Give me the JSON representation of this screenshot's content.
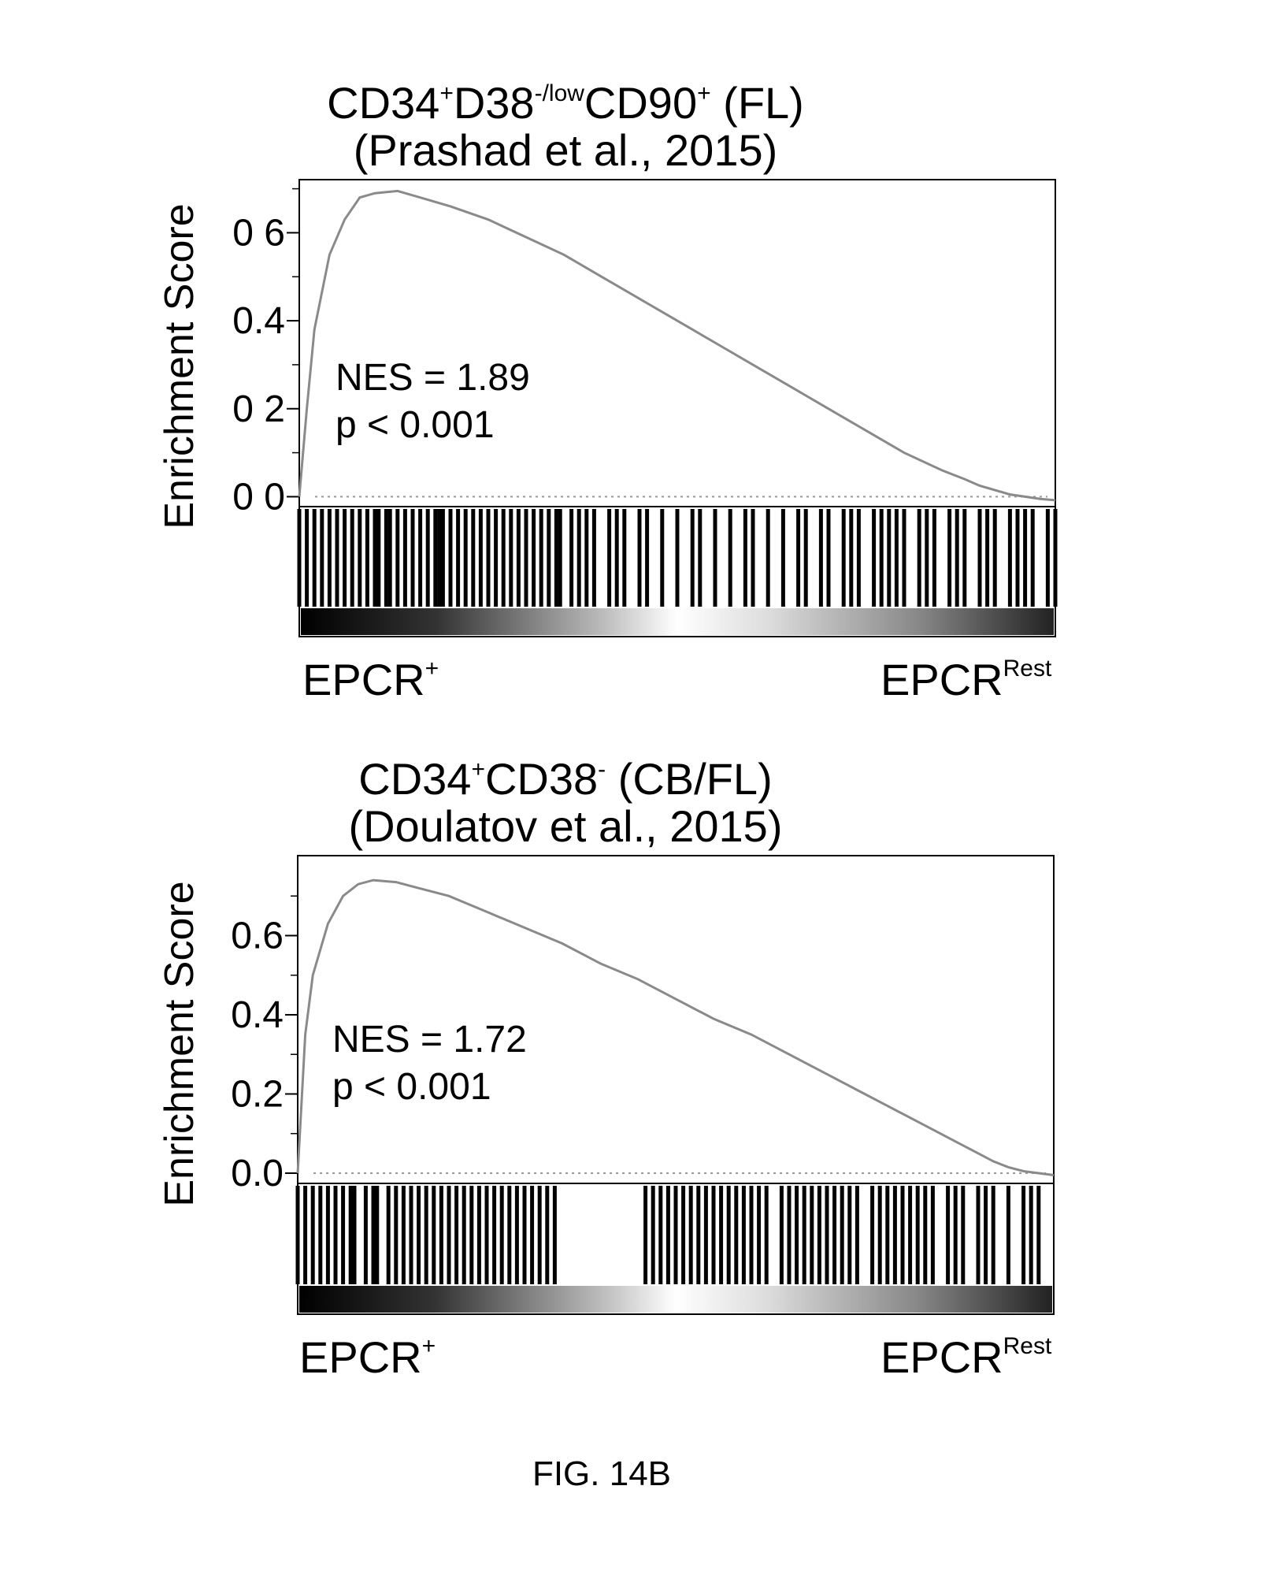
{
  "figure_label": "FIG. 14B",
  "chart_data": [
    {
      "type": "line",
      "title": {
        "line1_parts": [
          "CD34",
          "+",
          "D38",
          "-/low",
          "CD90",
          "+",
          " (FL)"
        ],
        "line2": "(Prashad et al., 2015)"
      },
      "ylabel": "Enrichment Score",
      "ytick_labels": [
        "0 6",
        "0.4",
        "0 2",
        "0 0"
      ],
      "ytick_values": [
        0.6,
        0.4,
        0.2,
        0.0
      ],
      "ylim": [
        -0.01,
        0.71
      ],
      "xlim": [
        0,
        1
      ],
      "x": [
        0,
        0.01,
        0.02,
        0.04,
        0.06,
        0.08,
        0.1,
        0.13,
        0.16,
        0.2,
        0.25,
        0.3,
        0.35,
        0.4,
        0.45,
        0.5,
        0.55,
        0.6,
        0.65,
        0.7,
        0.75,
        0.8,
        0.85,
        0.88,
        0.9,
        0.92,
        0.94,
        0.96,
        0.98,
        1.0
      ],
      "y": [
        0.0,
        0.2,
        0.38,
        0.55,
        0.63,
        0.68,
        0.69,
        0.695,
        0.68,
        0.66,
        0.63,
        0.59,
        0.55,
        0.5,
        0.45,
        0.4,
        0.35,
        0.3,
        0.25,
        0.2,
        0.15,
        0.1,
        0.06,
        0.04,
        0.025,
        0.015,
        0.005,
        0.0,
        -0.005,
        -0.008
      ],
      "annotation_nes": "NES = 1.89",
      "annotation_p": "p < 0.001",
      "left_group": {
        "base": "EPCR",
        "sup": "+"
      },
      "right_group": {
        "base": "EPCR",
        "sup": "Rest"
      },
      "hit_positions": [
        0.0,
        0.01,
        0.02,
        0.03,
        0.04,
        0.05,
        0.06,
        0.07,
        0.08,
        0.09,
        0.1,
        0.105,
        0.115,
        0.12,
        0.13,
        0.14,
        0.15,
        0.16,
        0.17,
        0.18,
        0.185,
        0.19,
        0.2,
        0.21,
        0.22,
        0.23,
        0.24,
        0.25,
        0.26,
        0.27,
        0.28,
        0.29,
        0.3,
        0.31,
        0.32,
        0.33,
        0.34,
        0.345,
        0.36,
        0.37,
        0.38,
        0.39,
        0.41,
        0.42,
        0.43,
        0.45,
        0.46,
        0.48,
        0.5,
        0.52,
        0.53,
        0.55,
        0.57,
        0.59,
        0.6,
        0.62,
        0.64,
        0.66,
        0.67,
        0.69,
        0.7,
        0.72,
        0.73,
        0.74,
        0.76,
        0.77,
        0.78,
        0.79,
        0.8,
        0.82,
        0.83,
        0.84,
        0.86,
        0.87,
        0.88,
        0.9,
        0.91,
        0.92,
        0.94,
        0.95,
        0.96,
        0.97,
        0.99,
        1.0
      ]
    },
    {
      "type": "line",
      "title": {
        "line1_parts": [
          "CD34",
          "+",
          "CD38",
          "-",
          " (CB/FL)"
        ],
        "line2": "(Doulatov et al., 2015)"
      },
      "ylabel": "Enrichment Score",
      "ytick_labels": [
        "0.6",
        "0.4",
        "0.2",
        "0.0"
      ],
      "ytick_values": [
        0.6,
        0.4,
        0.2,
        0.0
      ],
      "ylim": [
        -0.01,
        0.79
      ],
      "xlim": [
        0,
        1
      ],
      "x": [
        0,
        0.01,
        0.02,
        0.04,
        0.06,
        0.08,
        0.1,
        0.13,
        0.16,
        0.2,
        0.25,
        0.3,
        0.35,
        0.4,
        0.45,
        0.5,
        0.55,
        0.6,
        0.65,
        0.7,
        0.75,
        0.8,
        0.85,
        0.88,
        0.9,
        0.92,
        0.94,
        0.96,
        0.98,
        1.0
      ],
      "y": [
        0.0,
        0.35,
        0.5,
        0.63,
        0.7,
        0.73,
        0.74,
        0.735,
        0.72,
        0.7,
        0.66,
        0.62,
        0.58,
        0.53,
        0.49,
        0.44,
        0.39,
        0.35,
        0.3,
        0.25,
        0.2,
        0.15,
        0.1,
        0.07,
        0.05,
        0.03,
        0.015,
        0.005,
        0.0,
        -0.005
      ],
      "annotation_nes": "NES = 1.72",
      "annotation_p": "p < 0.001",
      "left_group": {
        "base": "EPCR",
        "sup": "+"
      },
      "right_group": {
        "base": "EPCR",
        "sup": "Rest"
      },
      "hit_positions": [
        0.0,
        0.01,
        0.02,
        0.03,
        0.04,
        0.05,
        0.06,
        0.07,
        0.075,
        0.09,
        0.1,
        0.105,
        0.12,
        0.13,
        0.14,
        0.15,
        0.16,
        0.17,
        0.18,
        0.19,
        0.2,
        0.21,
        0.22,
        0.23,
        0.24,
        0.25,
        0.26,
        0.27,
        0.28,
        0.29,
        0.3,
        0.31,
        0.32,
        0.33,
        0.34,
        0.46,
        0.47,
        0.48,
        0.49,
        0.5,
        0.51,
        0.52,
        0.53,
        0.54,
        0.55,
        0.56,
        0.57,
        0.58,
        0.59,
        0.6,
        0.61,
        0.62,
        0.64,
        0.65,
        0.66,
        0.67,
        0.68,
        0.69,
        0.7,
        0.71,
        0.72,
        0.73,
        0.74,
        0.76,
        0.77,
        0.78,
        0.79,
        0.8,
        0.81,
        0.82,
        0.83,
        0.84,
        0.86,
        0.87,
        0.88,
        0.9,
        0.91,
        0.92,
        0.94,
        0.96,
        0.97,
        0.98
      ]
    }
  ]
}
